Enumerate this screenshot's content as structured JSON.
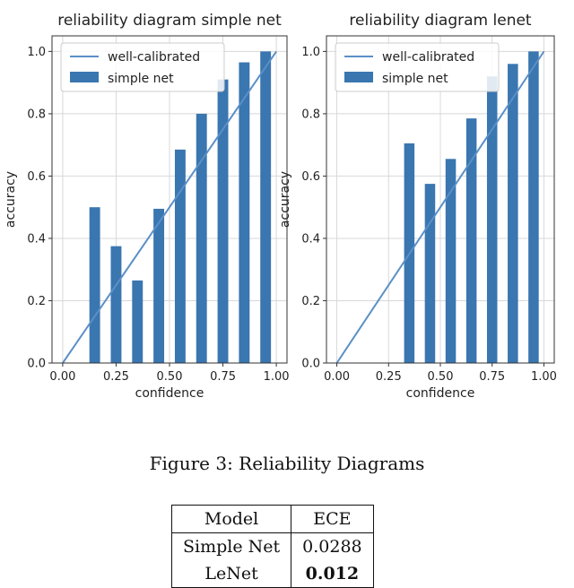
{
  "chart_data": [
    {
      "type": "bar",
      "title": "reliability diagram simple net",
      "xlabel": "confidence",
      "ylabel": "accuracy",
      "xlim": [
        -0.05,
        1.05
      ],
      "ylim": [
        0,
        1.05
      ],
      "xticks": [
        "0.00",
        "0.25",
        "0.50",
        "0.75",
        "1.00"
      ],
      "yticks": [
        "0.0",
        "0.2",
        "0.4",
        "0.6",
        "0.8",
        "1.0"
      ],
      "grid": true,
      "legend_position": "top-left",
      "legend": [
        "well-calibrated",
        "simple net"
      ],
      "series": [
        {
          "name": "well-calibrated",
          "type": "line",
          "x": [
            0,
            1
          ],
          "y": [
            0,
            1
          ]
        },
        {
          "name": "simple net",
          "type": "bar",
          "x": [
            0.15,
            0.25,
            0.35,
            0.45,
            0.55,
            0.65,
            0.75,
            0.85,
            0.95
          ],
          "y": [
            0.5,
            0.375,
            0.265,
            0.495,
            0.685,
            0.8,
            0.91,
            0.965,
            1.0
          ]
        }
      ],
      "bar_color": "#3a76b0",
      "line_color": "#5b8fc7"
    },
    {
      "type": "bar",
      "title": "reliability diagram lenet",
      "xlabel": "confidence",
      "ylabel": "accuracy",
      "xlim": [
        -0.05,
        1.05
      ],
      "ylim": [
        0,
        1.05
      ],
      "xticks": [
        "0.00",
        "0.25",
        "0.50",
        "0.75",
        "1.00"
      ],
      "yticks": [
        "0.0",
        "0.2",
        "0.4",
        "0.6",
        "0.8",
        "1.0"
      ],
      "grid": true,
      "legend_position": "top-left",
      "legend": [
        "well-calibrated",
        "simple net"
      ],
      "series": [
        {
          "name": "well-calibrated",
          "type": "line",
          "x": [
            0,
            1
          ],
          "y": [
            0,
            1
          ]
        },
        {
          "name": "simple net",
          "type": "bar",
          "x": [
            0.35,
            0.45,
            0.55,
            0.65,
            0.75,
            0.85,
            0.95
          ],
          "y": [
            0.705,
            0.575,
            0.655,
            0.785,
            0.92,
            0.96,
            1.0
          ]
        }
      ],
      "bar_color": "#3a76b0",
      "line_color": "#5b8fc7"
    }
  ],
  "caption": "Figure 3: Reliability Diagrams",
  "table": {
    "headers": [
      "Model",
      "ECE"
    ],
    "rows": [
      [
        "Simple Net",
        "0.0288"
      ],
      [
        "LeNet",
        "0.012"
      ]
    ]
  }
}
